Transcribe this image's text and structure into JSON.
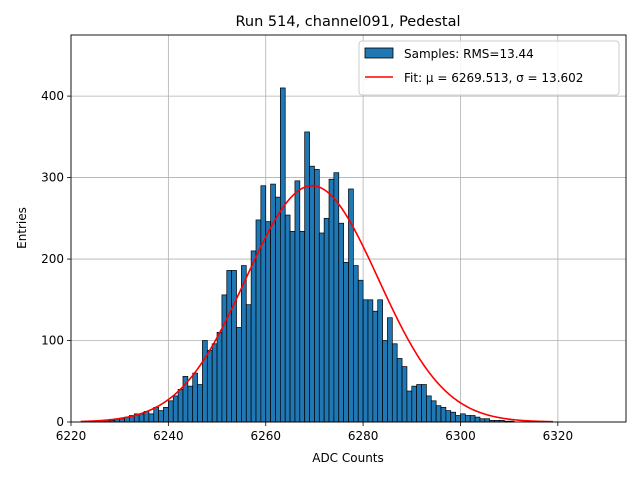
{
  "chart_data": {
    "type": "bar",
    "title": "Run 514, channel091, Pedestal",
    "xlabel": "ADC Counts",
    "ylabel": "Entries",
    "xlim": [
      6220,
      6334
    ],
    "ylim": [
      0,
      475
    ],
    "xticks": [
      6220,
      6240,
      6260,
      6280,
      6300,
      6320
    ],
    "yticks": [
      0,
      100,
      200,
      300,
      400
    ],
    "grid": true,
    "legend_position": "top-right",
    "series": [
      {
        "name": "Samples: RMS=13.44",
        "kind": "histogram",
        "color": "#1f77b4",
        "edge_color": "#000000",
        "bin_width": 1,
        "x": [
          6222,
          6223,
          6224,
          6225,
          6226,
          6227,
          6228,
          6229,
          6230,
          6231,
          6232,
          6233,
          6234,
          6235,
          6236,
          6237,
          6238,
          6239,
          6240,
          6241,
          6242,
          6243,
          6244,
          6245,
          6246,
          6247,
          6248,
          6249,
          6250,
          6251,
          6252,
          6253,
          6254,
          6255,
          6256,
          6257,
          6258,
          6259,
          6260,
          6261,
          6262,
          6263,
          6264,
          6265,
          6266,
          6267,
          6268,
          6269,
          6270,
          6271,
          6272,
          6273,
          6274,
          6275,
          6276,
          6277,
          6278,
          6279,
          6280,
          6281,
          6282,
          6283,
          6284,
          6285,
          6286,
          6287,
          6288,
          6289,
          6290,
          6291,
          6292,
          6293,
          6294,
          6295,
          6296,
          6297,
          6298,
          6299,
          6300,
          6301,
          6302,
          6303,
          6304,
          6305,
          6306,
          6307,
          6308,
          6309,
          6310,
          6311,
          6312,
          6313,
          6314,
          6315,
          6316,
          6317,
          6318
        ],
        "values": [
          0,
          0,
          1,
          1,
          2,
          2,
          2,
          4,
          4,
          6,
          8,
          10,
          10,
          13,
          10,
          18,
          14,
          18,
          26,
          32,
          40,
          56,
          44,
          60,
          46,
          100,
          88,
          96,
          110,
          156,
          186,
          186,
          116,
          192,
          144,
          210,
          248,
          290,
          246,
          292,
          276,
          410,
          254,
          234,
          296,
          234,
          356,
          314,
          310,
          232,
          250,
          298,
          306,
          244,
          196,
          286,
          192,
          174,
          150,
          150,
          136,
          150,
          100,
          128,
          96,
          78,
          68,
          38,
          44,
          46,
          46,
          32,
          26,
          20,
          18,
          14,
          12,
          8,
          10,
          8,
          8,
          6,
          4,
          4,
          2,
          2,
          2,
          1,
          1,
          0,
          0,
          0,
          0,
          0,
          0,
          0,
          0
        ]
      },
      {
        "name": "Fit: μ = 6269.513, σ = 13.602",
        "kind": "gaussian-fit",
        "color": "#ff0000",
        "mu": 6269.513,
        "sigma": 13.602,
        "amplitude": 290,
        "x_range": [
          6222,
          6319
        ]
      }
    ]
  }
}
